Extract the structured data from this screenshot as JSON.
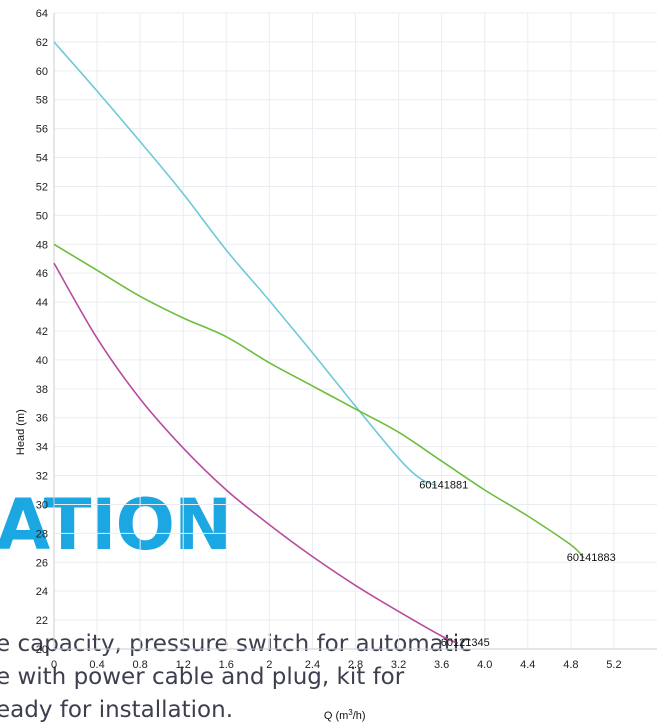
{
  "background": {
    "heading": "ATION",
    "heading_color": "#1ba7e1",
    "text_color": "#3d3f4f",
    "lines": [
      "e capacity, pressure switch for automatic",
      "e with power cable and plug, kit for",
      "eady for installation."
    ]
  },
  "chart_data": {
    "type": "line",
    "title": "",
    "xlabel_base": "Q (m",
    "xlabel_sup": "3",
    "xlabel_end": "/h)",
    "ylabel": "Head (m)",
    "xlim": [
      0,
      5.6
    ],
    "ylim": [
      20,
      64
    ],
    "x_ticks": [
      "0",
      "0.4",
      "0.8",
      "1.2",
      "1.6",
      "2",
      "2.4",
      "2.8",
      "3.2",
      "3.6",
      "4.0",
      "4.4",
      "4.8",
      "5.2"
    ],
    "y_ticks": [
      20,
      22,
      24,
      26,
      28,
      30,
      32,
      34,
      36,
      38,
      40,
      42,
      44,
      46,
      48,
      50,
      52,
      54,
      56,
      58,
      60,
      62,
      64
    ],
    "grid": true,
    "series": [
      {
        "name": "60141881",
        "color": "#6ecad8",
        "points": [
          [
            0,
            62
          ],
          [
            0.4,
            58.6
          ],
          [
            0.8,
            55.1
          ],
          [
            1.2,
            51.5
          ],
          [
            1.6,
            47.6
          ],
          [
            2.0,
            44.1
          ],
          [
            2.4,
            40.5
          ],
          [
            2.8,
            36.8
          ],
          [
            3.2,
            33.2
          ],
          [
            3.4,
            31.8
          ],
          [
            3.55,
            31.3
          ]
        ]
      },
      {
        "name": "60141883",
        "color": "#6dbd3d",
        "points": [
          [
            0,
            48
          ],
          [
            0.4,
            46.2
          ],
          [
            0.8,
            44.4
          ],
          [
            1.2,
            42.9
          ],
          [
            1.6,
            41.6
          ],
          [
            2.0,
            39.8
          ],
          [
            2.4,
            38.2
          ],
          [
            2.8,
            36.6
          ],
          [
            3.2,
            35.0
          ],
          [
            3.6,
            33.0
          ],
          [
            4.0,
            31.0
          ],
          [
            4.4,
            29.2
          ],
          [
            4.8,
            27.2
          ],
          [
            4.92,
            26.3
          ]
        ]
      },
      {
        "name": "60121345",
        "color": "#b94aa0",
        "points": [
          [
            0,
            46.7
          ],
          [
            0.4,
            41.5
          ],
          [
            0.8,
            37.3
          ],
          [
            1.2,
            33.9
          ],
          [
            1.6,
            31.0
          ],
          [
            2.0,
            28.6
          ],
          [
            2.4,
            26.4
          ],
          [
            2.8,
            24.4
          ],
          [
            3.2,
            22.6
          ],
          [
            3.6,
            20.9
          ],
          [
            3.75,
            20.4
          ]
        ]
      }
    ]
  }
}
